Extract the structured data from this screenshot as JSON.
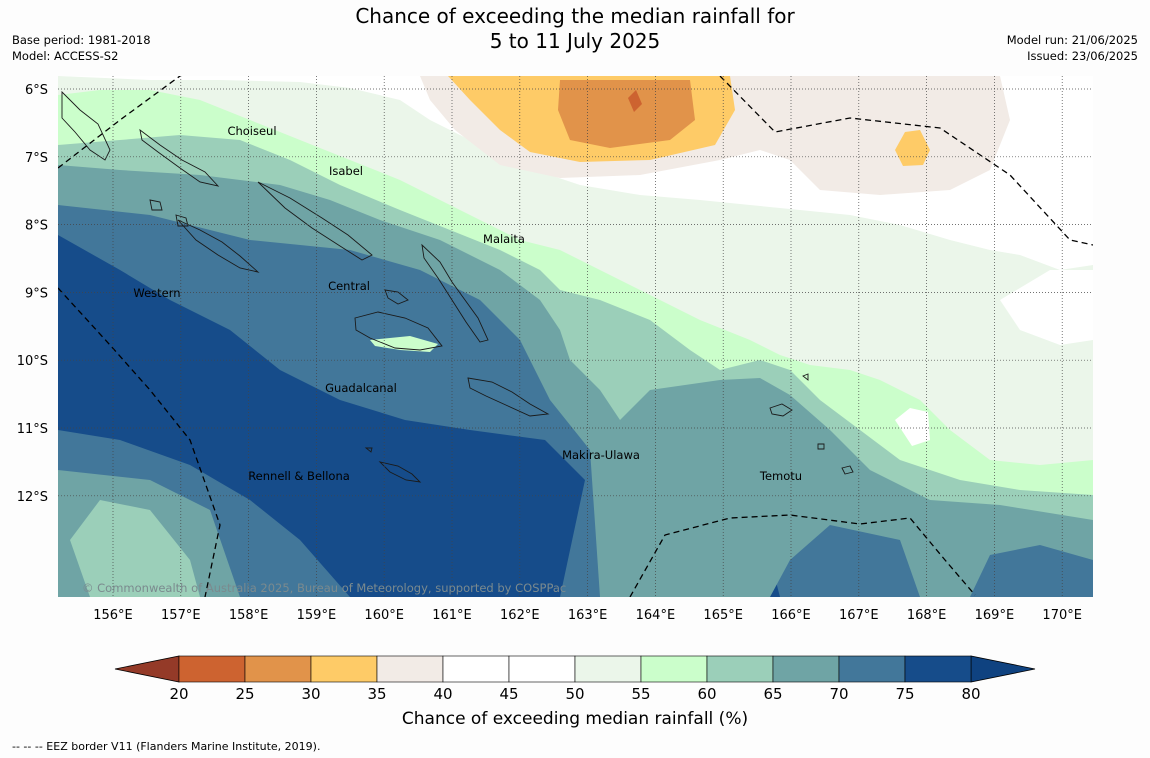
{
  "header": {
    "title_line1": "Chance of exceeding the median rainfall for",
    "title_line2": "5 to 11 July 2025",
    "base_period": "Base period: 1981-2018",
    "model": "Model: ACCESS-S2",
    "model_run": "Model run: 21/06/2025",
    "issued": "Issued: 23/06/2025"
  },
  "map": {
    "lat_labels": [
      "6°S",
      "7°S",
      "8°S",
      "9°S",
      "10°S",
      "11°S",
      "12°S"
    ],
    "lon_labels": [
      "156°E",
      "157°E",
      "158°E",
      "159°E",
      "160°E",
      "161°E",
      "162°E",
      "163°E",
      "164°E",
      "165°E",
      "166°E",
      "167°E",
      "168°E",
      "169°E",
      "170°E"
    ],
    "province_labels": [
      "Choiseul",
      "Isabel",
      "Malaita",
      "Central",
      "Western",
      "Guadalcanal",
      "Makira-Ulawa",
      "Rennell & Bellona",
      "Temotu"
    ],
    "copyright": "© Commonwealth of Australia 2025, Bureau of Meteorology, supported by COSPPac"
  },
  "colorbar": {
    "ticks": [
      "20",
      "25",
      "30",
      "35",
      "40",
      "45",
      "50",
      "55",
      "60",
      "65",
      "70",
      "75",
      "80"
    ],
    "colors": [
      "#b1472a",
      "#cd6330",
      "#e1934a",
      "#fecb67",
      "#f2ebe6",
      "#ffffff",
      "#ffffff",
      "#ebf6ea",
      "#cbfecb",
      "#9bcfb9",
      "#6fa4a5",
      "#42779a",
      "#164c8a"
    ],
    "under_color": "#943a28",
    "over_color": "#0f4280",
    "label": "Chance of exceeding median rainfall (%)"
  },
  "legend": {
    "eez_text": "--  --  -- EEZ border V11 (Flanders Marine Institute, 2019)."
  }
}
